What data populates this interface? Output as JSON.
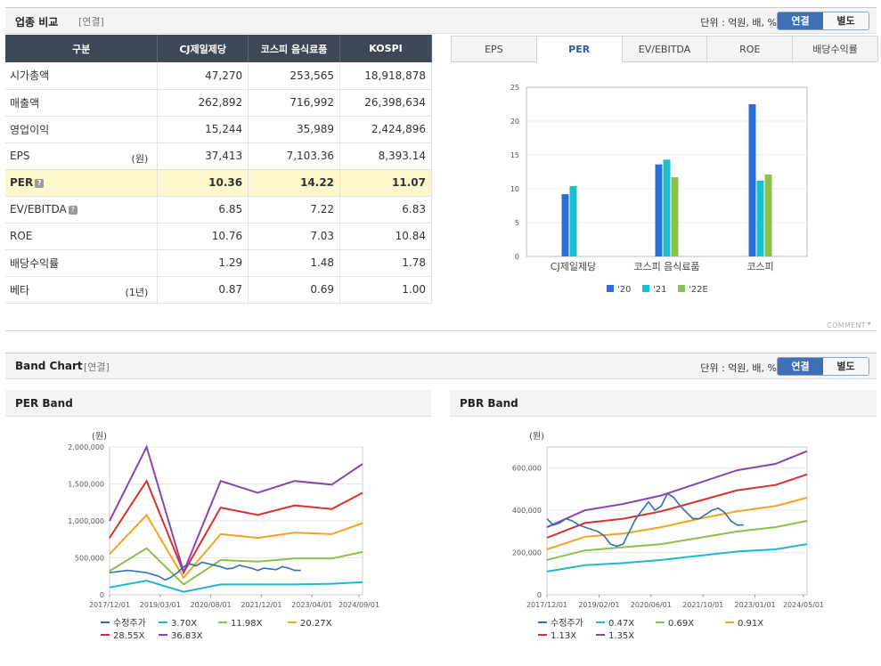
{
  "compare": {
    "title": "업종 비교",
    "sub": "[연결]",
    "unit": "단위 : 억원, 배, %",
    "toggle": [
      "연결",
      "별도"
    ],
    "columns": [
      "구분",
      "CJ제일제당",
      "코스피 음식료품",
      "KOSPI"
    ],
    "rows": [
      {
        "label": "시가총액",
        "note": "",
        "q": false,
        "values": [
          "47,270",
          "253,565",
          "18,918,878"
        ]
      },
      {
        "label": "매출액",
        "note": "",
        "q": false,
        "values": [
          "262,892",
          "716,992",
          "26,398,634"
        ]
      },
      {
        "label": "영업이익",
        "note": "",
        "q": false,
        "values": [
          "15,244",
          "35,989",
          "2,424,896"
        ]
      },
      {
        "label": "EPS",
        "note": "(원)",
        "q": false,
        "values": [
          "37,413",
          "7,103.36",
          "8,393.14"
        ]
      },
      {
        "label": "PER",
        "note": "",
        "q": true,
        "values": [
          "10.36",
          "14.22",
          "11.07"
        ]
      },
      {
        "label": "EV/EBITDA",
        "note": "",
        "q": true,
        "values": [
          "6.85",
          "7.22",
          "6.83"
        ]
      },
      {
        "label": "ROE",
        "note": "",
        "q": false,
        "values": [
          "10.76",
          "7.03",
          "10.84"
        ]
      },
      {
        "label": "배당수익률",
        "note": "",
        "q": false,
        "values": [
          "1.29",
          "1.48",
          "1.78"
        ]
      },
      {
        "label": "베타",
        "note": "(1년)",
        "q": false,
        "values": [
          "0.87",
          "0.69",
          "1.00"
        ]
      }
    ],
    "highlight_row": 4
  },
  "metric_tabs": {
    "items": [
      "EPS",
      "PER",
      "EV/EBITDA",
      "ROE",
      "배당수익률"
    ],
    "active": 1
  },
  "comment_label": "COMMENT",
  "band": {
    "title": "Band Chart",
    "sub": "[연결]",
    "unit": "단위 : 억원, 배, %",
    "toggle": [
      "연결",
      "별도"
    ]
  },
  "colors": {
    "s20": "#2a6fd6",
    "s21": "#19bfd0",
    "s22": "#8cc04a",
    "price": "#2f6fba",
    "b1": "#1fb7d1",
    "b2": "#8cc04a",
    "b3": "#f4a321",
    "b4": "#d9312b",
    "b5": "#8e44ad"
  },
  "chart_data": [
    {
      "type": "bar",
      "title": "PER",
      "categories": [
        "CJ제일제당",
        "코스피 음식료품",
        "코스피"
      ],
      "series": [
        {
          "name": "'20",
          "values": [
            9.2,
            13.6,
            22.5
          ]
        },
        {
          "name": "'21",
          "values": [
            10.4,
            14.3,
            11.2
          ]
        },
        {
          "name": "'22E",
          "values": [
            null,
            11.7,
            12.1
          ]
        }
      ],
      "ylim": [
        0,
        25
      ],
      "yticks": [
        0,
        5,
        10,
        15,
        20,
        25
      ]
    },
    {
      "type": "line",
      "title": "PER Band",
      "ylabel": "(원)",
      "x_ticks": [
        "2017/12/01",
        "2019/03/01",
        "2020/08/01",
        "2021/12/01",
        "2023/04/01",
        "2024/09/01"
      ],
      "y_ticks": [
        "0",
        "500,000",
        "1,000,000",
        "1,500,000",
        "2,000,000"
      ],
      "ylim": [
        0,
        2000000
      ],
      "x_range": [
        0,
        82
      ],
      "series": [
        {
          "name": "수정주가",
          "x": [
            0,
            6,
            12,
            16,
            18,
            20,
            22,
            24,
            26,
            28,
            30,
            32,
            34,
            36,
            38,
            40,
            42,
            44,
            46,
            48,
            50,
            52,
            54,
            56,
            58,
            60,
            62
          ],
          "values": [
            300000,
            330000,
            300000,
            250000,
            200000,
            240000,
            300000,
            380000,
            420000,
            390000,
            440000,
            420000,
            400000,
            380000,
            350000,
            360000,
            400000,
            380000,
            360000,
            330000,
            360000,
            350000,
            340000,
            380000,
            360000,
            330000,
            330000
          ]
        },
        {
          "name": "3.70X",
          "x": [
            0,
            12,
            24,
            36,
            48,
            60,
            72,
            82
          ],
          "values": [
            100000,
            190000,
            40000,
            140000,
            140000,
            140000,
            150000,
            170000
          ]
        },
        {
          "name": "11.98X",
          "x": [
            0,
            12,
            24,
            36,
            48,
            60,
            72,
            82
          ],
          "values": [
            320000,
            630000,
            140000,
            470000,
            450000,
            490000,
            490000,
            580000
          ]
        },
        {
          "name": "20.27X",
          "x": [
            0,
            12,
            24,
            36,
            48,
            60,
            72,
            82
          ],
          "values": [
            550000,
            1080000,
            230000,
            820000,
            770000,
            840000,
            820000,
            970000
          ]
        },
        {
          "name": "28.55X",
          "x": [
            0,
            12,
            24,
            36,
            48,
            60,
            72,
            82
          ],
          "values": [
            770000,
            1540000,
            300000,
            1180000,
            1080000,
            1210000,
            1160000,
            1380000
          ]
        },
        {
          "name": "36.83X",
          "x": [
            0,
            12,
            24,
            36,
            48,
            60,
            72,
            82
          ],
          "values": [
            1000000,
            2000000,
            310000,
            1540000,
            1380000,
            1540000,
            1490000,
            1770000
          ]
        }
      ]
    },
    {
      "type": "line",
      "title": "PBR Band",
      "ylabel": "(원)",
      "x_ticks": [
        "2017/12/01",
        "2019/02/01",
        "2020/06/01",
        "2021/10/01",
        "2023/01/01",
        "2024/05/01"
      ],
      "y_ticks": [
        "0",
        "200,000",
        "400,000",
        "600,000"
      ],
      "ylim": [
        0,
        700000
      ],
      "x_range": [
        0,
        82
      ],
      "series": [
        {
          "name": "수정주가",
          "x": [
            0,
            2,
            4,
            6,
            8,
            10,
            12,
            14,
            16,
            18,
            20,
            22,
            24,
            26,
            28,
            30,
            32,
            34,
            36,
            38,
            40,
            42,
            44,
            46,
            48,
            50,
            52,
            54,
            56,
            58,
            60,
            62
          ],
          "values": [
            360000,
            330000,
            340000,
            360000,
            350000,
            330000,
            320000,
            310000,
            300000,
            280000,
            240000,
            230000,
            240000,
            300000,
            360000,
            400000,
            440000,
            400000,
            420000,
            480000,
            460000,
            420000,
            390000,
            360000,
            360000,
            380000,
            400000,
            410000,
            390000,
            350000,
            330000,
            330000
          ]
        },
        {
          "name": "0.47X",
          "x": [
            0,
            12,
            24,
            36,
            48,
            60,
            72,
            82
          ],
          "values": [
            110000,
            140000,
            150000,
            165000,
            185000,
            205000,
            215000,
            240000
          ]
        },
        {
          "name": "0.69X",
          "x": [
            0,
            12,
            24,
            36,
            48,
            60,
            72,
            82
          ],
          "values": [
            165000,
            210000,
            225000,
            240000,
            270000,
            300000,
            320000,
            350000
          ]
        },
        {
          "name": "0.91X",
          "x": [
            0,
            12,
            24,
            36,
            48,
            60,
            72,
            82
          ],
          "values": [
            215000,
            275000,
            290000,
            320000,
            360000,
            395000,
            420000,
            460000
          ]
        },
        {
          "name": "1.13X",
          "x": [
            0,
            12,
            24,
            36,
            48,
            60,
            72,
            82
          ],
          "values": [
            270000,
            340000,
            360000,
            395000,
            445000,
            495000,
            520000,
            570000
          ]
        },
        {
          "name": "1.35X",
          "x": [
            0,
            12,
            24,
            36,
            48,
            60,
            72,
            82
          ],
          "values": [
            320000,
            400000,
            430000,
            470000,
            530000,
            590000,
            620000,
            680000
          ]
        }
      ]
    }
  ]
}
